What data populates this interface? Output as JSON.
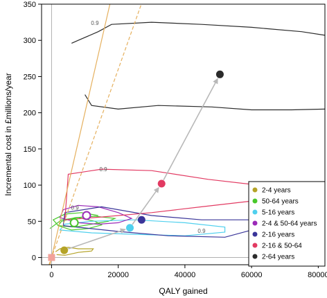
{
  "chart_data": {
    "type": "scatter",
    "title": "",
    "xlabel": "QALY gained",
    "ylabel": "Incremental cost in £millions/year",
    "xlim": [
      -3000,
      82000
    ],
    "ylim": [
      -10,
      350
    ],
    "xticks": [
      0,
      20000,
      40000,
      60000,
      80000
    ],
    "yticks": [
      0,
      50,
      100,
      150,
      200,
      250,
      300,
      350
    ],
    "grid": false,
    "legend_position": "bottom-right",
    "series": [
      {
        "name": "2-4 years",
        "color": "#b5a327",
        "x": 3800,
        "y": 10,
        "hollow": false
      },
      {
        "name": "50-64 years",
        "color": "#48c82a",
        "x": 6800,
        "y": 48,
        "hollow": true
      },
      {
        "name": "5-16 years",
        "color": "#4fd0ee",
        "x": 23500,
        "y": 41,
        "hollow": false
      },
      {
        "name": "2-4 & 50-64 years",
        "color": "#9b2ab8",
        "x": 10500,
        "y": 58,
        "hollow": true
      },
      {
        "name": "2-16 years",
        "color": "#3a3599",
        "x": 27000,
        "y": 52,
        "hollow": false
      },
      {
        "name": "2-16 & 50-64",
        "color": "#e23a62",
        "x": 33000,
        "y": 102,
        "hollow": false
      },
      {
        "name": "2-64 years",
        "color": "#2b2b2b",
        "x": 50500,
        "y": 253,
        "hollow": false
      }
    ],
    "origin_point": {
      "x": 0,
      "y": 0,
      "color": "#f2a29a"
    },
    "threshold_lines": [
      {
        "slope": 20000,
        "style": "solid",
        "color": "#e5b05e"
      },
      {
        "slope": 13000,
        "style": "dashed",
        "color": "#e5b05e"
      }
    ],
    "contour_label": "0.9",
    "contour_labels": [
      {
        "x": 13000,
        "y": 324,
        "text": "0.9"
      },
      {
        "x": 15500,
        "y": 122,
        "text": "0.9"
      },
      {
        "x": 45000,
        "y": 37,
        "text": "0.9"
      },
      {
        "x": 7000,
        "y": 69,
        "text": "0.9"
      }
    ],
    "arrows": [
      {
        "from": [
          3800,
          10
        ],
        "to": [
          23500,
          41
        ]
      },
      {
        "from": [
          23500,
          41
        ],
        "to": [
          33000,
          102
        ]
      },
      {
        "from": [
          33000,
          102
        ],
        "to": [
          50500,
          253
        ]
      }
    ]
  }
}
